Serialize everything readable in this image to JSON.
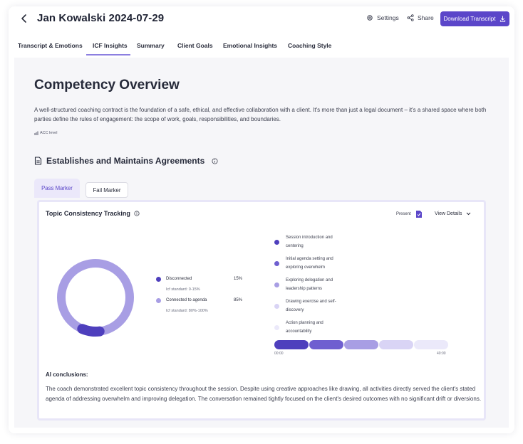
{
  "header": {
    "title": "Jan Kowalski 2024-07-29",
    "settings_label": "Settings",
    "share_label": "Share",
    "download_label": "Download Transcript"
  },
  "tabs": [
    {
      "label": "Transcript & Emotions"
    },
    {
      "label": "ICF Insights",
      "active": true
    },
    {
      "label": "Summary"
    },
    {
      "label": "Client Goals"
    },
    {
      "label": "Emotional Insights"
    },
    {
      "label": "Coaching Style"
    }
  ],
  "overview": {
    "title": "Competency Overview",
    "description": "A well-structured coaching contract is the foundation of a safe, ethical, and effective collaboration with a client. It's more than just a legal document – it's a shared space where both parties define the rules of engagement: the scope of work, goals, responsibilities, and boundaries.",
    "level_label": "ACC level"
  },
  "section": {
    "title": "Establishes and Maintains Agreements",
    "marker_tabs": {
      "pass": "Pass Marker",
      "fail": "Fail Marker"
    }
  },
  "card": {
    "title": "Topic Consistency Tracking",
    "present_label": "Present",
    "view_details_label": "View Details",
    "legend": [
      {
        "label": "Disconnected",
        "value": "15%",
        "standard": "Icf standard: 0-15%",
        "color": "#4e3fbd"
      },
      {
        "label": "Connected to agenda",
        "value": "85%",
        "standard": "Icf standard: 80%-100%",
        "color": "#a89ee4"
      }
    ],
    "donut": {
      "disconnected_pct": 15,
      "connected_pct": 85
    },
    "segments": [
      {
        "label": "Session introduction and centering",
        "color": "#4e3fbd"
      },
      {
        "label": "Initial agenda setting and exploring overwhelm",
        "color": "#6f5fd0"
      },
      {
        "label": "Exploring delegation and leadership patterns",
        "color": "#a89ee4"
      },
      {
        "label": "Drawing exercise and self-discovery",
        "color": "#d9d4f5"
      },
      {
        "label": "Action planning and accountability",
        "color": "#ebe9fa"
      }
    ],
    "timeline": {
      "start": "00:00",
      "end": "40:00"
    },
    "ai_title": "AI conclusions:",
    "ai_text": "The coach demonstrated excellent topic consistency throughout the session. Despite using creative approaches like drawing, all activities directly served the client's stated agenda of addressing overwhelm and improving delegation. The conversation remained tightly focused on the client's desired outcomes with no significant drift or diversions."
  }
}
